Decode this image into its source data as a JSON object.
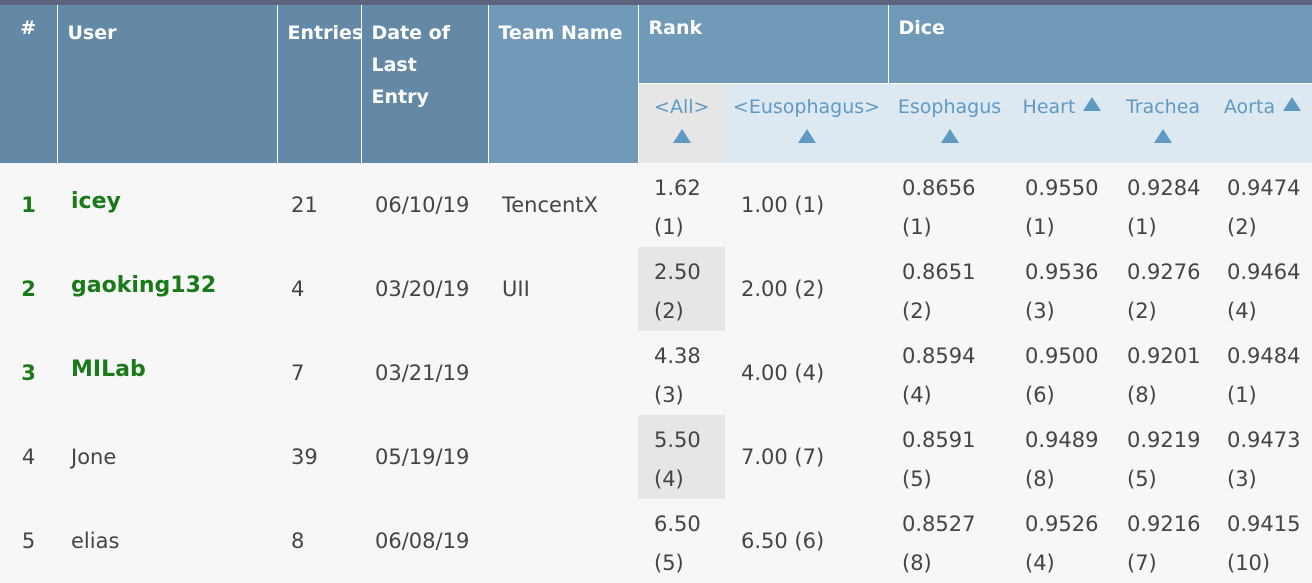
{
  "header": {
    "num": "#",
    "user": "User",
    "entries": "Entries",
    "date_line1": "Date of",
    "date_line2": "Last Entry",
    "team": "Team Name",
    "rank": "Rank",
    "dice": "Dice",
    "sub": {
      "all": "<All>",
      "eusophagus": "<Eusophagus>",
      "esophagus": "Esophagus",
      "heart": "Heart",
      "trachea": "Trachea",
      "aorta": "Aorta"
    }
  },
  "rows": [
    {
      "num": "1",
      "user": "icey",
      "entries": "21",
      "date": "06/10/19",
      "team": "TencentX",
      "rank_all": "1.62",
      "rank_all_pos": "(1)",
      "rank_eso": "1.00 (1)",
      "esophagus": "0.8656",
      "esophagus_pos": "(1)",
      "heart": "0.9550",
      "heart_pos": "(1)",
      "trachea": "0.9284",
      "trachea_pos": "(1)",
      "aorta": "0.9474",
      "aorta_pos": "(2)"
    },
    {
      "num": "2",
      "user": "gaoking132",
      "entries": "4",
      "date": "03/20/19",
      "team": "UII",
      "rank_all": "2.50",
      "rank_all_pos": "(2)",
      "rank_eso": "2.00 (2)",
      "esophagus": "0.8651",
      "esophagus_pos": "(2)",
      "heart": "0.9536",
      "heart_pos": "(3)",
      "trachea": "0.9276",
      "trachea_pos": "(2)",
      "aorta": "0.9464",
      "aorta_pos": "(4)"
    },
    {
      "num": "3",
      "user": "MILab",
      "entries": "7",
      "date": "03/21/19",
      "team": "",
      "rank_all": "4.38",
      "rank_all_pos": "(3)",
      "rank_eso": "4.00 (4)",
      "esophagus": "0.8594",
      "esophagus_pos": "(4)",
      "heart": "0.9500",
      "heart_pos": "(6)",
      "trachea": "0.9201",
      "trachea_pos": "(8)",
      "aorta": "0.9484",
      "aorta_pos": "(1)"
    },
    {
      "num": "4",
      "user": "Jone",
      "entries": "39",
      "date": "05/19/19",
      "team": "",
      "rank_all": "5.50",
      "rank_all_pos": "(4)",
      "rank_eso": "7.00 (7)",
      "esophagus": "0.8591",
      "esophagus_pos": "(5)",
      "heart": "0.9489",
      "heart_pos": "(8)",
      "trachea": "0.9219",
      "trachea_pos": "(5)",
      "aorta": "0.9473",
      "aorta_pos": "(3)"
    },
    {
      "num": "5",
      "user": "elias",
      "entries": "8",
      "date": "06/08/19",
      "team": "",
      "rank_all": "6.50",
      "rank_all_pos": "(5)",
      "rank_eso": "6.50 (6)",
      "esophagus": "0.8527",
      "esophagus_pos": "(8)",
      "heart": "0.9526",
      "heart_pos": "(4)",
      "trachea": "0.9216",
      "trachea_pos": "(7)",
      "aorta": "0.9415",
      "aorta_pos": "(10)"
    }
  ],
  "colors": {
    "header_dark": "#6389a6",
    "header_light": "#7199b8",
    "subheader_bg": "#dde8f1",
    "sort_link": "#5e9ac4",
    "winner_green": "#1a7a1a"
  },
  "icons": {
    "sort": "triangle-up-icon"
  }
}
